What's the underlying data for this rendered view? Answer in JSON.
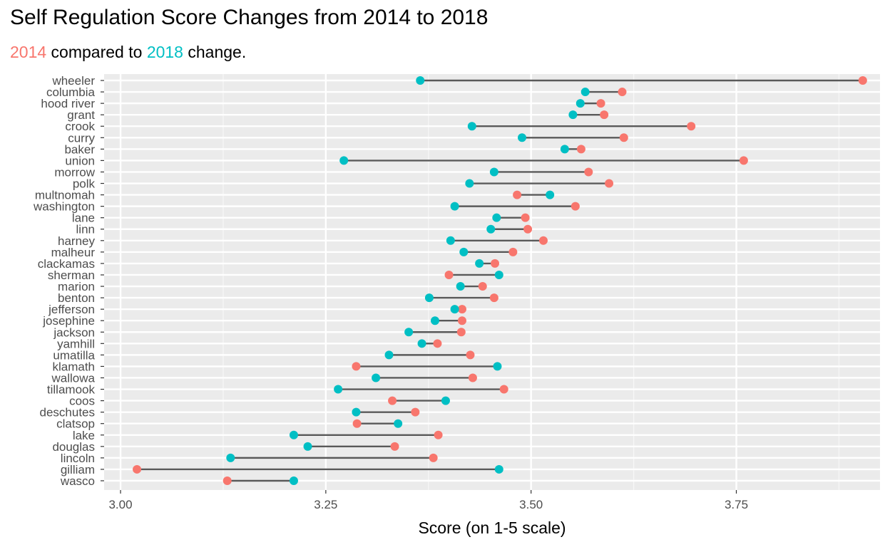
{
  "chart_data": {
    "type": "dumbbell",
    "title": "Self Regulation Score Changes from 2014 to 2018",
    "subtitle": {
      "parts": [
        {
          "text": "2014",
          "color": "#F8766D"
        },
        {
          "text": " compared to ",
          "color": "#000000"
        },
        {
          "text": "2018",
          "color": "#00BFC4"
        },
        {
          "text": " change.",
          "color": "#000000"
        }
      ]
    },
    "xlabel": "Score (on 1-5 scale)",
    "ylabel": "",
    "xlim": [
      2.98,
      3.925
    ],
    "x_ticks": [
      3.0,
      3.25,
      3.5,
      3.75
    ],
    "x_tick_labels": [
      "3.00",
      "3.25",
      "3.50",
      "3.75"
    ],
    "panel_background": "#EBEBEB",
    "grid": true,
    "series": [
      {
        "name": "2014",
        "color": "#F8766D"
      },
      {
        "name": "2018",
        "color": "#00BFC4"
      }
    ],
    "segment_color": "#595959",
    "categories": [
      "wheeler",
      "columbia",
      "hood river",
      "grant",
      "crook",
      "curry",
      "baker",
      "union",
      "morrow",
      "polk",
      "multnomah",
      "washington",
      "lane",
      "linn",
      "harney",
      "malheur",
      "clackamas",
      "sherman",
      "marion",
      "benton",
      "jefferson",
      "josephine",
      "jackson",
      "yamhill",
      "umatilla",
      "klamath",
      "wallowa",
      "tillamook",
      "coos",
      "deschutes",
      "clatsop",
      "lake",
      "douglas",
      "lincoln",
      "gilliam",
      "wasco"
    ],
    "values_2014": [
      3.904,
      3.611,
      3.585,
      3.589,
      3.695,
      3.613,
      3.561,
      3.759,
      3.57,
      3.595,
      3.483,
      3.554,
      3.493,
      3.496,
      3.515,
      3.478,
      3.456,
      3.4,
      3.441,
      3.455,
      3.416,
      3.416,
      3.415,
      3.386,
      3.426,
      3.287,
      3.429,
      3.467,
      3.331,
      3.359,
      3.288,
      3.387,
      3.334,
      3.381,
      3.02,
      3.13
    ],
    "values_2018": [
      3.365,
      3.566,
      3.56,
      3.551,
      3.428,
      3.489,
      3.541,
      3.272,
      3.455,
      3.425,
      3.523,
      3.407,
      3.458,
      3.451,
      3.402,
      3.418,
      3.437,
      3.461,
      3.414,
      3.376,
      3.407,
      3.383,
      3.351,
      3.367,
      3.327,
      3.459,
      3.311,
      3.265,
      3.396,
      3.287,
      3.338,
      3.211,
      3.228,
      3.134,
      3.461,
      3.211
    ]
  }
}
